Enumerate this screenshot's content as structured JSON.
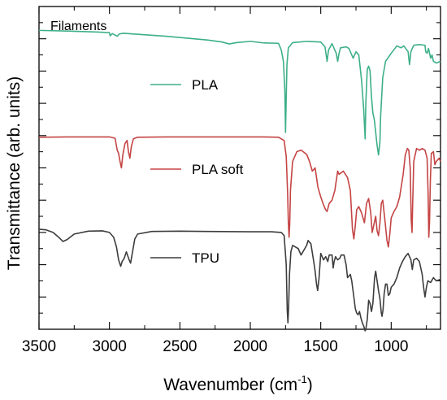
{
  "chart_data": {
    "type": "line",
    "title": "",
    "annotation": "Filaments",
    "xlabel": "Wavenumber (cm",
    "xlabel_sup": "-1",
    "xlabel_end": ")",
    "ylabel": "Transmittance (arb. units)",
    "xlim": [
      3500,
      650
    ],
    "x_reversed": true,
    "ylim": [
      0,
      10
    ],
    "y_tick_labels_shown": false,
    "x_ticks": [
      3500,
      3000,
      2500,
      2000,
      1500,
      1000
    ],
    "x_tick_labels": [
      "3500",
      "3000",
      "2500",
      "2000",
      "1500",
      "1000"
    ],
    "grid": false,
    "legend_placement": "inline-center",
    "series": [
      {
        "name": "PLA",
        "color": "#3daf8a",
        "points": [
          [
            3500,
            9.26
          ],
          [
            3300,
            9.24
          ],
          [
            3100,
            9.21
          ],
          [
            3000,
            9.19
          ],
          [
            2995,
            9.09
          ],
          [
            2980,
            9.16
          ],
          [
            2945,
            9.08
          ],
          [
            2930,
            9.15
          ],
          [
            2900,
            9.17
          ],
          [
            2600,
            9.08
          ],
          [
            2300,
            8.96
          ],
          [
            2200,
            8.9
          ],
          [
            2150,
            8.84
          ],
          [
            2100,
            8.88
          ],
          [
            2000,
            8.92
          ],
          [
            1900,
            8.87
          ],
          [
            1800,
            8.86
          ],
          [
            1780,
            8.65
          ],
          [
            1765,
            8.3
          ],
          [
            1755,
            7.4
          ],
          [
            1750,
            6.1
          ],
          [
            1745,
            7.2
          ],
          [
            1740,
            8.2
          ],
          [
            1730,
            8.72
          ],
          [
            1700,
            8.88
          ],
          [
            1600,
            8.92
          ],
          [
            1500,
            8.9
          ],
          [
            1470,
            8.75
          ],
          [
            1455,
            8.3
          ],
          [
            1445,
            8.65
          ],
          [
            1420,
            8.85
          ],
          [
            1390,
            8.55
          ],
          [
            1380,
            8.3
          ],
          [
            1370,
            8.55
          ],
          [
            1360,
            8.72
          ],
          [
            1320,
            8.75
          ],
          [
            1300,
            8.7
          ],
          [
            1270,
            8.4
          ],
          [
            1260,
            8.5
          ],
          [
            1250,
            8.6
          ],
          [
            1230,
            8.5
          ],
          [
            1210,
            7.7
          ],
          [
            1195,
            6.8
          ],
          [
            1185,
            5.9
          ],
          [
            1180,
            7.0
          ],
          [
            1170,
            8.05
          ],
          [
            1160,
            8.15
          ],
          [
            1150,
            8.0
          ],
          [
            1140,
            7.2
          ],
          [
            1130,
            6.7
          ],
          [
            1120,
            6.5
          ],
          [
            1110,
            6.1
          ],
          [
            1100,
            5.7
          ],
          [
            1090,
            5.4
          ],
          [
            1080,
            5.8
          ],
          [
            1075,
            6.6
          ],
          [
            1060,
            7.8
          ],
          [
            1040,
            8.3
          ],
          [
            1000,
            8.55
          ],
          [
            960,
            8.78
          ],
          [
            930,
            8.72
          ],
          [
            910,
            8.78
          ],
          [
            880,
            8.6
          ],
          [
            870,
            8.2
          ],
          [
            860,
            8.6
          ],
          [
            840,
            8.8
          ],
          [
            800,
            8.82
          ],
          [
            760,
            8.8
          ],
          [
            755,
            8.6
          ],
          [
            745,
            8.55
          ],
          [
            735,
            8.7
          ],
          [
            720,
            8.4
          ],
          [
            710,
            8.5
          ],
          [
            700,
            8.3
          ],
          [
            680,
            8.25
          ],
          [
            650,
            8.3
          ]
        ]
      },
      {
        "name": "PLA soft",
        "color": "#c54444",
        "points": [
          [
            3500,
            5.95
          ],
          [
            3300,
            5.96
          ],
          [
            3100,
            5.96
          ],
          [
            3000,
            5.96
          ],
          [
            2960,
            5.92
          ],
          [
            2945,
            5.55
          ],
          [
            2935,
            5.45
          ],
          [
            2925,
            5.2
          ],
          [
            2915,
            5.0
          ],
          [
            2905,
            5.4
          ],
          [
            2890,
            5.75
          ],
          [
            2875,
            5.85
          ],
          [
            2865,
            5.5
          ],
          [
            2855,
            5.3
          ],
          [
            2845,
            5.65
          ],
          [
            2830,
            5.9
          ],
          [
            2800,
            5.95
          ],
          [
            2600,
            5.96
          ],
          [
            2000,
            5.96
          ],
          [
            1900,
            5.96
          ],
          [
            1800,
            5.95
          ],
          [
            1760,
            5.85
          ],
          [
            1745,
            5.35
          ],
          [
            1735,
            4.2
          ],
          [
            1730,
            3.3
          ],
          [
            1725,
            2.85
          ],
          [
            1720,
            3.3
          ],
          [
            1715,
            4.3
          ],
          [
            1700,
            5.2
          ],
          [
            1670,
            5.5
          ],
          [
            1640,
            5.55
          ],
          [
            1600,
            5.42
          ],
          [
            1580,
            5.2
          ],
          [
            1560,
            4.9
          ],
          [
            1540,
            5.0
          ],
          [
            1520,
            4.4
          ],
          [
            1500,
            4.1
          ],
          [
            1480,
            3.85
          ],
          [
            1465,
            3.7
          ],
          [
            1455,
            3.65
          ],
          [
            1440,
            3.9
          ],
          [
            1420,
            4.0
          ],
          [
            1400,
            4.3
          ],
          [
            1380,
            4.9
          ],
          [
            1370,
            4.8
          ],
          [
            1340,
            4.9
          ],
          [
            1310,
            4.7
          ],
          [
            1290,
            4.3
          ],
          [
            1275,
            3.1
          ],
          [
            1265,
            2.8
          ],
          [
            1255,
            3.2
          ],
          [
            1245,
            3.7
          ],
          [
            1230,
            3.8
          ],
          [
            1210,
            3.6
          ],
          [
            1190,
            3.3
          ],
          [
            1175,
            3.9
          ],
          [
            1160,
            4.05
          ],
          [
            1145,
            3.6
          ],
          [
            1135,
            3.0
          ],
          [
            1125,
            3.2
          ],
          [
            1110,
            3.5
          ],
          [
            1100,
            3.05
          ],
          [
            1090,
            2.9
          ],
          [
            1080,
            3.3
          ],
          [
            1070,
            3.9
          ],
          [
            1060,
            4.0
          ],
          [
            1045,
            3.4
          ],
          [
            1030,
            2.75
          ],
          [
            1020,
            2.55
          ],
          [
            1010,
            2.95
          ],
          [
            1000,
            3.45
          ],
          [
            980,
            3.65
          ],
          [
            960,
            3.8
          ],
          [
            940,
            4.1
          ],
          [
            915,
            4.8
          ],
          [
            900,
            5.4
          ],
          [
            885,
            5.6
          ],
          [
            875,
            5.55
          ],
          [
            865,
            5.0
          ],
          [
            858,
            3.4
          ],
          [
            852,
            3.0
          ],
          [
            848,
            3.8
          ],
          [
            840,
            5.2
          ],
          [
            820,
            5.6
          ],
          [
            800,
            5.55
          ],
          [
            780,
            5.6
          ],
          [
            760,
            5.55
          ],
          [
            745,
            5.3
          ],
          [
            738,
            4.2
          ],
          [
            733,
            2.85
          ],
          [
            728,
            3.3
          ],
          [
            722,
            4.6
          ],
          [
            715,
            5.45
          ],
          [
            700,
            5.5
          ],
          [
            690,
            5.1
          ],
          [
            680,
            5.2
          ],
          [
            660,
            5.3
          ],
          [
            650,
            5.2
          ]
        ]
      },
      {
        "name": "TPU",
        "color": "#3d3d3d",
        "points": [
          [
            3500,
            3.1
          ],
          [
            3450,
            3.08
          ],
          [
            3400,
            3.0
          ],
          [
            3360,
            2.85
          ],
          [
            3330,
            2.72
          ],
          [
            3300,
            2.78
          ],
          [
            3250,
            2.95
          ],
          [
            3150,
            3.04
          ],
          [
            3050,
            3.05
          ],
          [
            3000,
            3.0
          ],
          [
            2970,
            2.85
          ],
          [
            2950,
            2.55
          ],
          [
            2935,
            2.15
          ],
          [
            2920,
            1.95
          ],
          [
            2910,
            2.1
          ],
          [
            2895,
            2.2
          ],
          [
            2880,
            2.4
          ],
          [
            2860,
            2.15
          ],
          [
            2850,
            2.05
          ],
          [
            2840,
            2.3
          ],
          [
            2820,
            2.8
          ],
          [
            2800,
            2.95
          ],
          [
            2700,
            3.03
          ],
          [
            2500,
            3.04
          ],
          [
            2300,
            3.03
          ],
          [
            2000,
            3.02
          ],
          [
            1850,
            3.02
          ],
          [
            1780,
            3.0
          ],
          [
            1760,
            2.9
          ],
          [
            1745,
            2.0
          ],
          [
            1738,
            0.6
          ],
          [
            1733,
            0.2
          ],
          [
            1728,
            0.7
          ],
          [
            1722,
            1.7
          ],
          [
            1712,
            2.4
          ],
          [
            1700,
            2.6
          ],
          [
            1680,
            2.55
          ],
          [
            1660,
            2.5
          ],
          [
            1640,
            2.3
          ],
          [
            1620,
            2.45
          ],
          [
            1600,
            2.6
          ],
          [
            1590,
            2.75
          ],
          [
            1570,
            2.65
          ],
          [
            1550,
            2.1
          ],
          [
            1540,
            1.8
          ],
          [
            1530,
            1.4
          ],
          [
            1522,
            1.2
          ],
          [
            1512,
            1.6
          ],
          [
            1500,
            2.35
          ],
          [
            1480,
            2.15
          ],
          [
            1465,
            2.25
          ],
          [
            1450,
            2.1
          ],
          [
            1440,
            2.3
          ],
          [
            1420,
            2.3
          ],
          [
            1412,
            1.9
          ],
          [
            1405,
            2.1
          ],
          [
            1395,
            2.25
          ],
          [
            1380,
            2.15
          ],
          [
            1365,
            2.2
          ],
          [
            1355,
            2.3
          ],
          [
            1335,
            2.3
          ],
          [
            1320,
            2.0
          ],
          [
            1310,
            1.6
          ],
          [
            1300,
            1.65
          ],
          [
            1290,
            1.7
          ],
          [
            1280,
            1.5
          ],
          [
            1265,
            1.0
          ],
          [
            1255,
            0.65
          ],
          [
            1245,
            0.5
          ],
          [
            1235,
            0.45
          ],
          [
            1225,
            0.55
          ],
          [
            1215,
            0.35
          ],
          [
            1205,
            0.2
          ],
          [
            1195,
            0.1
          ],
          [
            1185,
            -0.05
          ],
          [
            1180,
            0.0
          ],
          [
            1170,
            0.3
          ],
          [
            1160,
            0.9
          ],
          [
            1150,
            0.8
          ],
          [
            1140,
            0.55
          ],
          [
            1130,
            0.8
          ],
          [
            1118,
            1.6
          ],
          [
            1110,
            1.8
          ],
          [
            1100,
            1.5
          ],
          [
            1090,
            1.2
          ],
          [
            1080,
            0.95
          ],
          [
            1070,
            0.5
          ],
          [
            1065,
            0.4
          ],
          [
            1058,
            0.6
          ],
          [
            1050,
            1.1
          ],
          [
            1040,
            1.4
          ],
          [
            1030,
            1.4
          ],
          [
            1020,
            1.05
          ],
          [
            1010,
            1.1
          ],
          [
            1000,
            1.3
          ],
          [
            980,
            1.4
          ],
          [
            960,
            1.6
          ],
          [
            940,
            1.9
          ],
          [
            920,
            2.1
          ],
          [
            900,
            2.25
          ],
          [
            880,
            2.35
          ],
          [
            860,
            2.15
          ],
          [
            850,
            1.85
          ],
          [
            840,
            2.15
          ],
          [
            820,
            2.2
          ],
          [
            800,
            2.1
          ],
          [
            780,
            1.7
          ],
          [
            770,
            1.3
          ],
          [
            760,
            1.0
          ],
          [
            750,
            1.3
          ],
          [
            740,
            1.5
          ],
          [
            720,
            1.45
          ],
          [
            700,
            1.6
          ],
          [
            680,
            1.5
          ],
          [
            650,
            1.55
          ]
        ]
      }
    ]
  }
}
